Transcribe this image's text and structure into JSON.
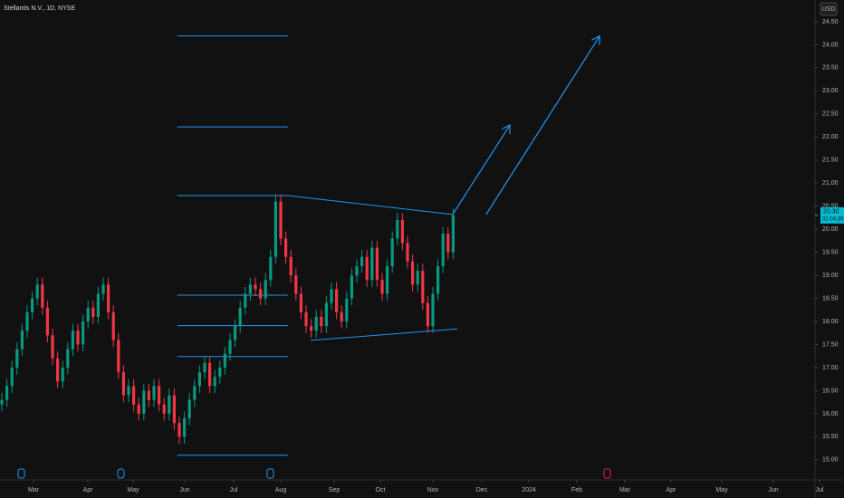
{
  "chart_data": {
    "type": "candlestick",
    "title": "Stellantis N.V., 1D, NYSE",
    "currency": "USD",
    "up_color": "#089981",
    "down_color": "#f23645",
    "drawing_color": "#2196f3",
    "open": [
      16.2,
      16.3,
      16.6,
      17.0,
      17.4,
      17.8,
      18.2,
      18.5,
      18.8,
      18.3,
      17.7,
      17.2,
      16.7,
      17.0,
      17.4,
      17.8,
      17.5,
      18.0,
      18.3,
      18.1,
      18.6,
      18.8,
      18.2,
      17.6,
      16.9,
      16.4,
      16.6,
      16.2,
      16.0,
      16.5,
      16.3,
      16.6,
      16.2,
      16.0,
      16.4,
      15.8,
      15.5,
      15.9,
      16.3,
      16.6,
      16.9,
      17.1,
      16.6,
      16.8,
      17.0,
      17.3,
      17.6,
      17.9,
      18.3,
      18.6,
      18.8,
      18.7,
      18.5,
      18.9,
      19.4,
      20.6,
      19.8,
      19.4,
      19.0,
      18.6,
      18.2,
      17.9,
      17.8,
      18.1,
      17.9,
      18.4,
      18.7,
      18.2,
      18.0,
      18.5,
      19.0,
      19.2,
      19.4,
      18.9,
      19.6,
      18.9,
      18.6,
      19.2,
      19.8,
      20.2,
      19.7,
      19.3,
      18.8,
      19.1,
      18.4,
      17.9,
      18.6,
      19.2,
      19.9,
      19.5
    ],
    "high": [
      16.45,
      16.75,
      17.15,
      17.55,
      17.95,
      18.35,
      18.65,
      18.95,
      18.95,
      18.45,
      17.85,
      17.35,
      17.15,
      17.55,
      17.95,
      17.95,
      18.15,
      18.45,
      18.45,
      18.75,
      18.95,
      18.95,
      18.35,
      17.75,
      17.05,
      16.75,
      16.75,
      16.35,
      16.65,
      16.65,
      16.75,
      16.75,
      16.35,
      16.55,
      16.55,
      15.95,
      16.05,
      16.45,
      16.75,
      17.05,
      17.25,
      17.25,
      16.95,
      17.15,
      17.45,
      17.75,
      18.05,
      18.45,
      18.75,
      18.95,
      18.95,
      18.85,
      19.05,
      19.55,
      20.75,
      20.75,
      19.95,
      19.55,
      19.15,
      18.75,
      18.35,
      18.05,
      18.25,
      18.25,
      18.55,
      18.85,
      18.85,
      18.35,
      18.65,
      19.15,
      19.35,
      19.55,
      19.55,
      19.75,
      19.75,
      19.05,
      19.35,
      19.95,
      20.35,
      20.35,
      19.85,
      19.45,
      19.25,
      19.25,
      18.55,
      18.75,
      19.35,
      20.05,
      20.05,
      20.45
    ],
    "low": [
      16.05,
      16.15,
      16.45,
      16.85,
      17.25,
      17.65,
      18.05,
      18.35,
      18.15,
      17.55,
      17.05,
      16.55,
      16.55,
      16.85,
      17.25,
      17.35,
      17.35,
      17.85,
      17.95,
      17.95,
      18.45,
      18.05,
      17.45,
      16.75,
      16.25,
      16.25,
      16.05,
      15.85,
      15.85,
      16.15,
      16.15,
      16.05,
      15.85,
      15.85,
      15.65,
      15.35,
      15.35,
      15.75,
      16.15,
      16.45,
      16.75,
      16.45,
      16.45,
      16.65,
      16.85,
      17.15,
      17.45,
      17.75,
      18.15,
      18.45,
      18.55,
      18.35,
      18.35,
      18.75,
      19.25,
      19.65,
      19.25,
      18.85,
      18.45,
      18.05,
      17.75,
      17.65,
      17.65,
      17.75,
      17.75,
      18.25,
      18.05,
      17.85,
      17.85,
      18.35,
      18.85,
      19.05,
      18.75,
      18.75,
      18.75,
      18.45,
      18.45,
      19.05,
      19.65,
      19.55,
      19.15,
      18.65,
      18.65,
      18.25,
      17.75,
      17.75,
      18.45,
      19.05,
      19.35,
      19.35
    ],
    "close": [
      16.3,
      16.6,
      17.0,
      17.4,
      17.8,
      18.2,
      18.5,
      18.8,
      18.3,
      17.7,
      17.2,
      16.7,
      17.0,
      17.4,
      17.8,
      17.5,
      18.0,
      18.3,
      18.1,
      18.6,
      18.8,
      18.2,
      17.6,
      16.9,
      16.4,
      16.6,
      16.2,
      16.0,
      16.5,
      16.3,
      16.6,
      16.2,
      16.0,
      16.4,
      15.8,
      15.5,
      15.9,
      16.3,
      16.6,
      16.9,
      17.1,
      16.6,
      16.8,
      17.0,
      17.3,
      17.6,
      17.9,
      18.3,
      18.6,
      18.8,
      18.7,
      18.5,
      18.9,
      19.4,
      20.6,
      19.8,
      19.4,
      19.0,
      18.6,
      18.2,
      17.9,
      17.8,
      18.1,
      17.9,
      18.4,
      18.7,
      18.2,
      18.0,
      18.5,
      19.0,
      19.2,
      19.4,
      18.9,
      19.6,
      18.9,
      18.6,
      19.2,
      19.8,
      20.2,
      19.7,
      19.3,
      18.8,
      19.1,
      18.4,
      17.9,
      18.6,
      19.2,
      19.9,
      19.5,
      20.3
    ],
    "xlim": [
      -0.36,
      160.36
    ],
    "ylim": [
      14.86,
      24.97
    ],
    "xticks": [
      {
        "value": 6.25,
        "label": "Mar"
      },
      {
        "value": 16.96,
        "label": "Apr"
      },
      {
        "value": 25.89,
        "label": "May"
      },
      {
        "value": 36.07,
        "label": "Jun"
      },
      {
        "value": 45.71,
        "label": "Jul"
      },
      {
        "value": 55,
        "label": "Aug"
      },
      {
        "value": 65.54,
        "label": "Sep"
      },
      {
        "value": 74.64,
        "label": "Oct"
      },
      {
        "value": 85,
        "label": "Nov"
      },
      {
        "value": 94.64,
        "label": "Dec"
      },
      {
        "value": 103.93,
        "label": "2024"
      },
      {
        "value": 113.39,
        "label": "Feb"
      },
      {
        "value": 122.86,
        "label": "Mar"
      },
      {
        "value": 131.96,
        "label": "Apr"
      },
      {
        "value": 141.96,
        "label": "May"
      },
      {
        "value": 152.14,
        "label": "Jun"
      },
      {
        "value": 161.25,
        "label": "Jul"
      }
    ],
    "yticks": [
      {
        "value": 15,
        "label": "15.00"
      },
      {
        "value": 15.5,
        "label": "15.50"
      },
      {
        "value": 16,
        "label": "16.00"
      },
      {
        "value": 16.5,
        "label": "16.50"
      },
      {
        "value": 17,
        "label": "17.00"
      },
      {
        "value": 17.5,
        "label": "17.50"
      },
      {
        "value": 18,
        "label": "18.00"
      },
      {
        "value": 18.5,
        "label": "18.50"
      },
      {
        "value": 19,
        "label": "19.00"
      },
      {
        "value": 19.5,
        "label": "19.50"
      },
      {
        "value": 20,
        "label": "20.00"
      },
      {
        "value": 20.5,
        "label": "20.50"
      },
      {
        "value": 21,
        "label": "21.00"
      },
      {
        "value": 21.5,
        "label": "21.50"
      },
      {
        "value": 22,
        "label": "22.00"
      },
      {
        "value": 22.5,
        "label": "22.50"
      },
      {
        "value": 23,
        "label": "23.00"
      },
      {
        "value": 23.5,
        "label": "23.50"
      },
      {
        "value": 24,
        "label": "24.00"
      },
      {
        "value": 24.5,
        "label": "24.50"
      }
    ],
    "last_price": {
      "value": 20.3,
      "label": "20.30"
    },
    "countdown": "02:04:39",
    "levels": {
      "x": [
        34.6,
        56.4
      ],
      "prices": [
        24.19,
        22.22,
        20.73,
        18.57,
        17.91,
        17.24,
        15.1
      ]
    },
    "trendlines": [
      [
        [
          56.4,
          20.73
        ],
        [
          88.9,
          20.32
        ]
      ],
      [
        [
          60.9,
          17.59
        ],
        [
          89.8,
          17.84
        ]
      ]
    ],
    "arrows": [
      [
        [
          88.9,
          20.32
        ],
        [
          100.2,
          22.26
        ]
      ],
      [
        [
          95.5,
          20.32
        ],
        [
          117.9,
          24.19
        ]
      ]
    ]
  }
}
